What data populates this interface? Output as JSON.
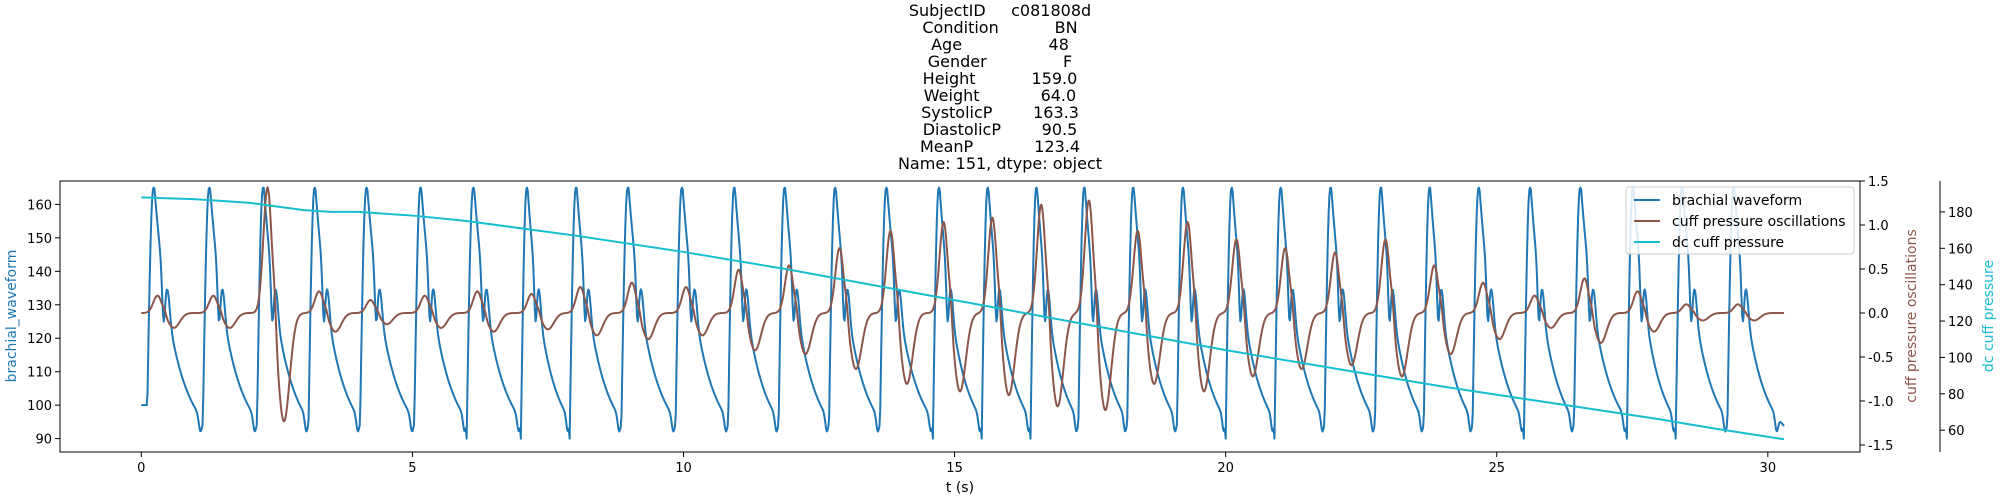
{
  "title_lines": [
    "SubjectID     c081808d",
    "Condition           BN",
    "Age                 48",
    "Gender               F",
    "Height           159.0",
    "Weight            64.0",
    "SystolicP        163.3",
    "DiastolicP        90.5",
    "MeanP            123.4",
    "Name: 151, dtype: object"
  ],
  "colors": {
    "brachial": "#1f77b4",
    "oscillations": "#8c564b",
    "dc_cuff": "#17becf",
    "axis": "#000000"
  },
  "chart_data": {
    "type": "line",
    "xlabel": "t (s)",
    "xlim": [
      -1.5,
      31.7
    ],
    "x_ticks": [
      0,
      5,
      10,
      15,
      20,
      25,
      30
    ],
    "axes": {
      "left": {
        "label": "brachial_waveform",
        "lim": [
          86,
          167
        ],
        "ticks": [
          90,
          100,
          110,
          120,
          130,
          140,
          150,
          160
        ]
      },
      "right1": {
        "label": "cuff pressure oscillations",
        "lim": [
          -1.58,
          1.5
        ],
        "ticks": [
          -1.5,
          -1.0,
          -0.5,
          0.0,
          0.5,
          1.0,
          1.5
        ]
      },
      "right2": {
        "label": "dc cuff pressure",
        "lim": [
          48,
          197
        ],
        "ticks": [
          60,
          80,
          100,
          120,
          140,
          160,
          180
        ]
      }
    },
    "legend_position": "top-right",
    "series": [
      {
        "name": "brachial waveform",
        "axis": "left",
        "beat_times": [
          0.1,
          1.13,
          2.13,
          3.08,
          4.03,
          5.03,
          6.0,
          7.0,
          7.9,
          8.85,
          9.85,
          10.82,
          11.75,
          12.68,
          13.62,
          14.6,
          15.5,
          16.4,
          17.28,
          18.18,
          19.1,
          20.0,
          20.9,
          21.82,
          22.75,
          23.65,
          24.55,
          25.5,
          26.42,
          27.4,
          28.3,
          29.25
        ],
        "systolic": 165,
        "diastolic": 90,
        "t_start": 0,
        "t_end": 30.3
      },
      {
        "name": "cuff pressure oscillations",
        "axis": "right1",
        "beat_times": [
          0.1,
          1.13,
          2.13,
          3.08,
          4.03,
          5.03,
          6.0,
          7.0,
          7.9,
          8.85,
          9.85,
          10.82,
          11.75,
          12.68,
          13.62,
          14.6,
          15.5,
          16.4,
          17.28,
          18.18,
          19.1,
          20.0,
          20.9,
          21.82,
          22.75,
          23.65,
          24.55,
          25.5,
          26.42,
          27.4,
          28.3,
          29.25
        ],
        "peak_amplitudes": [
          0.2,
          0.2,
          1.45,
          0.25,
          0.15,
          0.2,
          0.25,
          0.22,
          0.3,
          0.35,
          0.3,
          0.5,
          0.55,
          0.75,
          0.95,
          1.05,
          1.1,
          1.25,
          1.3,
          0.95,
          1.05,
          0.85,
          0.75,
          0.7,
          0.85,
          0.55,
          0.35,
          0.2,
          0.4,
          0.25,
          0.1,
          0.1
        ],
        "t_start": 0,
        "t_end": 30.3
      },
      {
        "name": "dc cuff pressure",
        "axis": "right2",
        "x": [
          0,
          1,
          1.5,
          2,
          2.5,
          3,
          3.5,
          4,
          5,
          6,
          8,
          10,
          12,
          14,
          16,
          18,
          20,
          22,
          24,
          26,
          28,
          29,
          30.3
        ],
        "y": [
          188,
          187,
          186,
          185,
          183,
          181,
          180,
          180,
          178,
          175,
          167,
          158,
          148,
          137,
          126,
          115,
          104,
          94,
          84,
          75,
          66,
          61,
          55
        ]
      }
    ]
  }
}
